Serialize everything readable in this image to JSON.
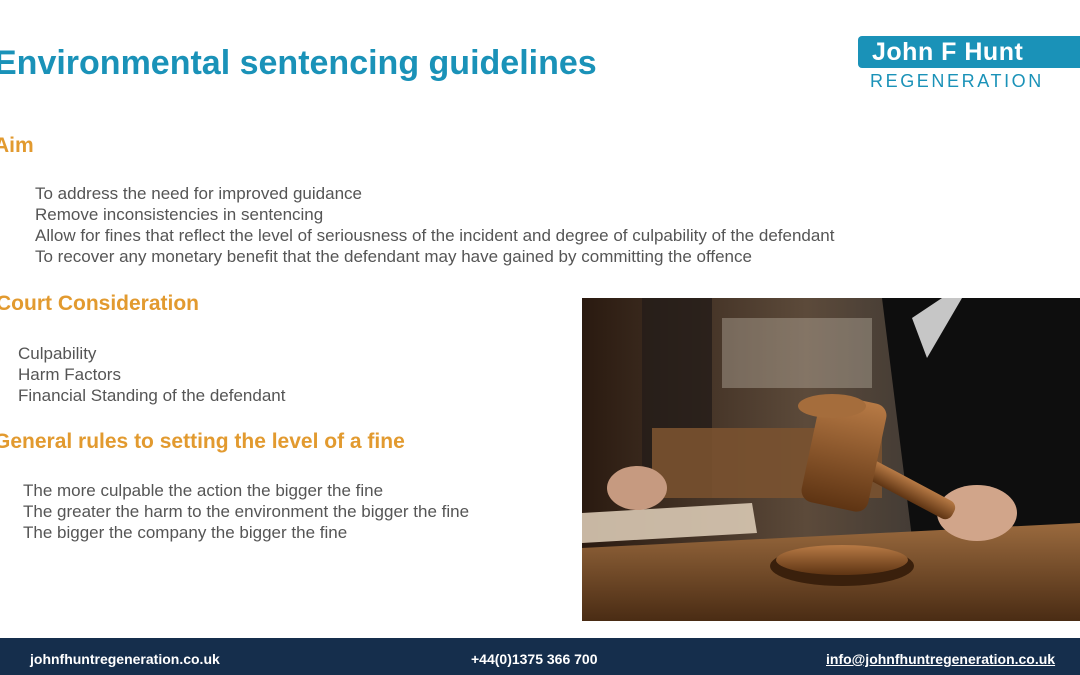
{
  "title": "Environmental sentencing guidelines",
  "logo": {
    "name": "John F Hunt",
    "sub": "REGENERATION"
  },
  "sections": {
    "aim": {
      "heading": "Aim",
      "items": [
        "To address the need for improved guidance",
        "Remove inconsistencies in sentencing",
        "Allow for fines that reflect the level of seriousness of the incident and degree of culpability of the defendant",
        "To recover any monetary benefit that the defendant may have gained by committing the offence"
      ]
    },
    "court": {
      "heading": "Court Consideration",
      "items": [
        "Culpability",
        "Harm Factors",
        "Financial Standing of the defendant"
      ]
    },
    "rules": {
      "heading": "General rules to setting the level of a fine",
      "items": [
        "The more culpable the action the bigger the fine",
        "The greater the harm to the environment the bigger the fine",
        "The bigger the company the bigger the fine"
      ]
    }
  },
  "footer": {
    "website": "johnfhuntregeneration.co.uk",
    "phone": "+44(0)1375 366 700",
    "email": "info@johnfhuntregeneration.co.uk"
  },
  "colors": {
    "accent": "#1a92b8",
    "heading": "#e29a2f",
    "footer": "#152e4c"
  }
}
